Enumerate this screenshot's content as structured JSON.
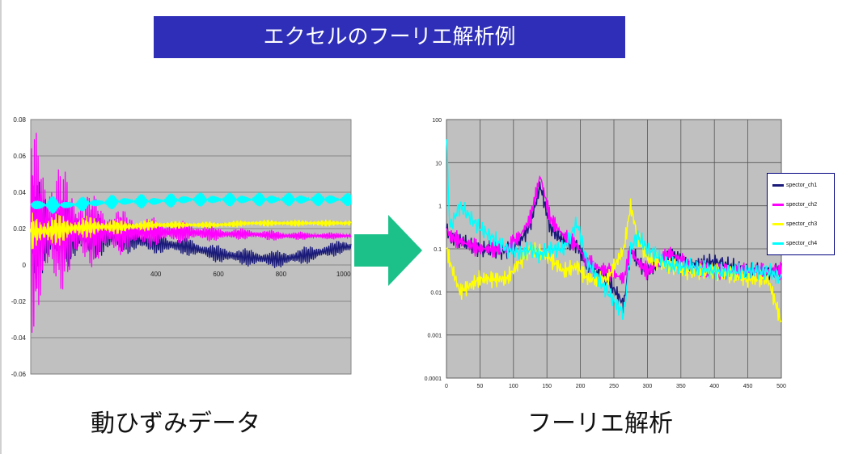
{
  "page": {
    "title": "エクセルのフーリエ解析例",
    "caption_left": "動ひずみデータ",
    "caption_right": "フーリエ解析",
    "arrow_icon": "right-arrow-icon",
    "arrow_color": "#1cc18a"
  },
  "chart_data": [
    {
      "type": "line",
      "title": "",
      "xlabel": "",
      "ylabel": "",
      "xlim": [
        0,
        1024
      ],
      "ylim": [
        -0.06,
        0.08
      ],
      "x_ticks": [
        "400",
        "600",
        "800",
        "1000"
      ],
      "x_tick_values": [
        400,
        600,
        800,
        1000
      ],
      "y_ticks": [
        "0.08",
        "0.06",
        "0.04",
        "0.02",
        "0",
        "-0.02",
        "-0.04",
        "-0.06"
      ],
      "y_tick_values": [
        0.08,
        0.06,
        0.04,
        0.02,
        0,
        -0.02,
        -0.04,
        -0.06
      ],
      "grid": true,
      "legend": "none",
      "plot_bg": "#c0c0c0",
      "series": [
        {
          "color": "#1a1a7a",
          "x": [
            0,
            60,
            120,
            200,
            300,
            400,
            500,
            600,
            700,
            800,
            900,
            1000
          ],
          "values": [
            0.02,
            0.018,
            0.017,
            0.016,
            0.015,
            0.012,
            0.01,
            0.006,
            0.004,
            0.003,
            0.006,
            0.01
          ],
          "amplitude": [
            0.03,
            0.024,
            0.018,
            0.013,
            0.009,
            0.006,
            0.005,
            0.005,
            0.005,
            0.005,
            0.005,
            0.004
          ]
        },
        {
          "color": "#ff00ff",
          "x": [
            0,
            60,
            120,
            200,
            300,
            400,
            500,
            600,
            700,
            800,
            900,
            1000
          ],
          "values": [
            0.02,
            0.02,
            0.02,
            0.019,
            0.018,
            0.018,
            0.018,
            0.017,
            0.017,
            0.016,
            0.016,
            0.016
          ],
          "amplitude": [
            0.06,
            0.045,
            0.03,
            0.02,
            0.012,
            0.008,
            0.006,
            0.004,
            0.003,
            0.003,
            0.002,
            0.002
          ]
        },
        {
          "color": "#ffff00",
          "x": [
            0,
            60,
            120,
            200,
            300,
            400,
            500,
            600,
            700,
            800,
            900,
            1000
          ],
          "values": [
            0.018,
            0.019,
            0.02,
            0.021,
            0.021,
            0.022,
            0.022,
            0.022,
            0.023,
            0.023,
            0.023,
            0.023
          ],
          "amplitude": [
            0.012,
            0.01,
            0.008,
            0.006,
            0.004,
            0.003,
            0.002,
            0.002,
            0.002,
            0.002,
            0.002,
            0.002
          ]
        },
        {
          "color": "#00ffff",
          "x": [
            0,
            60,
            120,
            200,
            300,
            400,
            500,
            600,
            700,
            800,
            900,
            1000
          ],
          "values": [
            0.033,
            0.033,
            0.033,
            0.034,
            0.035,
            0.035,
            0.036,
            0.036,
            0.036,
            0.036,
            0.036,
            0.036
          ],
          "amplitude": [
            0.006,
            0.005,
            0.004,
            0.004,
            0.004,
            0.004,
            0.004,
            0.004,
            0.004,
            0.004,
            0.004,
            0.004
          ]
        }
      ]
    },
    {
      "type": "line",
      "title": "",
      "xlabel": "",
      "ylabel": "",
      "xlim": [
        0,
        500
      ],
      "ylim": [
        0.0001,
        100
      ],
      "y_scale": "log",
      "x_ticks": [
        "0",
        "50",
        "100",
        "150",
        "200",
        "250",
        "300",
        "350",
        "400",
        "450",
        "500"
      ],
      "x_tick_values": [
        0,
        50,
        100,
        150,
        200,
        250,
        300,
        350,
        400,
        450,
        500
      ],
      "y_ticks": [
        "100",
        "10",
        "1",
        "0.1",
        "0.01",
        "0.001",
        "0.0001"
      ],
      "y_tick_values": [
        100,
        10,
        1,
        0.1,
        0.01,
        0.001,
        0.0001
      ],
      "grid": true,
      "legend": "right",
      "plot_bg": "#c0c0c0",
      "series": [
        {
          "name": "spector_ch1",
          "color": "#1a1a7a",
          "x": [
            0,
            5,
            20,
            50,
            90,
            110,
            125,
            140,
            155,
            175,
            195,
            210,
            240,
            265,
            275,
            285,
            300,
            335,
            360,
            400,
            450,
            480,
            500
          ],
          "values": [
            0.3,
            0.2,
            0.15,
            0.1,
            0.09,
            0.15,
            0.35,
            3,
            0.3,
            0.15,
            0.12,
            0.04,
            0.02,
            0.005,
            0.1,
            0.05,
            0.03,
            0.08,
            0.04,
            0.05,
            0.03,
            0.03,
            0.03
          ]
        },
        {
          "name": "spector_ch2",
          "color": "#ff00ff",
          "x": [
            0,
            5,
            20,
            50,
            90,
            110,
            125,
            140,
            155,
            175,
            195,
            210,
            240,
            265,
            275,
            285,
            300,
            335,
            360,
            400,
            450,
            480,
            500
          ],
          "values": [
            0.3,
            0.2,
            0.15,
            0.1,
            0.1,
            0.2,
            0.5,
            5,
            0.5,
            0.2,
            0.12,
            0.05,
            0.03,
            0.02,
            0.1,
            0.05,
            0.03,
            0.08,
            0.04,
            0.03,
            0.03,
            0.03,
            0.03
          ]
        },
        {
          "name": "spector_ch3",
          "color": "#ffff00",
          "x": [
            0,
            5,
            20,
            50,
            90,
            110,
            125,
            140,
            155,
            175,
            195,
            210,
            240,
            265,
            275,
            285,
            300,
            335,
            360,
            400,
            450,
            480,
            500
          ],
          "values": [
            0.1,
            0.05,
            0.01,
            0.02,
            0.02,
            0.05,
            0.1,
            0.08,
            0.06,
            0.03,
            0.04,
            0.02,
            0.02,
            0.1,
            1,
            0.2,
            0.06,
            0.04,
            0.03,
            0.03,
            0.02,
            0.02,
            0.002
          ]
        },
        {
          "name": "spector_ch4",
          "color": "#00ffff",
          "x": [
            0,
            5,
            20,
            50,
            90,
            110,
            125,
            140,
            155,
            175,
            195,
            210,
            240,
            265,
            275,
            285,
            300,
            335,
            360,
            400,
            450,
            480,
            500
          ],
          "values": [
            35,
            0.3,
            1,
            0.3,
            0.1,
            0.08,
            0.1,
            0.07,
            0.1,
            0.1,
            0.4,
            0.05,
            0.01,
            0.003,
            0.1,
            0.2,
            0.1,
            0.04,
            0.04,
            0.03,
            0.03,
            0.03,
            0.02
          ]
        }
      ]
    }
  ]
}
